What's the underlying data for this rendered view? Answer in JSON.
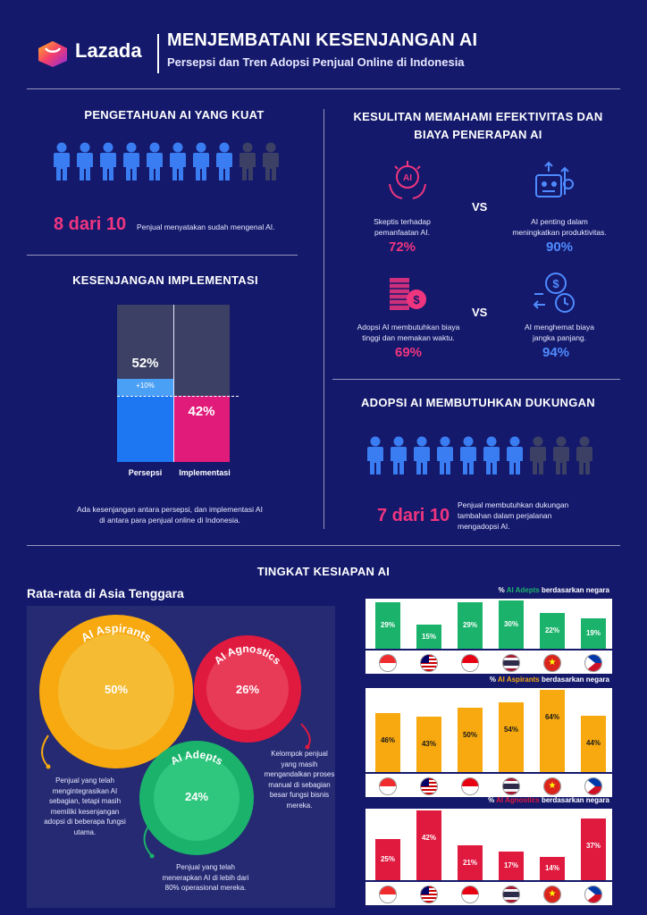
{
  "header": {
    "brand": "Lazada",
    "title": "MENJEMBATANI KESENJANGAN AI",
    "subtitle": "Persepsi dan Tren Adopsi Penjual Online di Indonesia"
  },
  "knowledge": {
    "title": "PENGETAHUAN AI YANG KUAT",
    "stat": "8 dari 10",
    "desc": "Penjual menyatakan sudah mengenal AI.",
    "filled": 8,
    "total": 10
  },
  "gap": {
    "title": "KESENJANGAN IMPLEMENTASI",
    "perception_pct": "52%",
    "implementation_pct": "42%",
    "diff_label": "+10%",
    "label_perception": "Persepsi",
    "label_implementation": "Implementasi",
    "perception_value": 52,
    "implementation_value": 42,
    "desc1": "Ada kesenjangan antara persepsi, dan implementasi AI",
    "desc2": "di antara para penjual online di Indonesia."
  },
  "difficulty": {
    "title1": "KESULITAN MEMAHAMI EFEKTIVITAS DAN",
    "title2": "BIAYA PENERAPAN AI",
    "vs": "VS",
    "items": [
      {
        "text1": "Skeptis terhadap",
        "text2": "pemanfaatan AI.",
        "pct": "72%"
      },
      {
        "text1": "AI penting dalam",
        "text2": "meningkatkan produktivitas.",
        "pct": "90%"
      },
      {
        "text1": "Adopsi AI membutuhkan biaya",
        "text2": "tinggi dan memakan waktu.",
        "pct": "69%"
      },
      {
        "text1": "AI menghemat biaya",
        "text2": "jangka panjang.",
        "pct": "94%"
      }
    ]
  },
  "support": {
    "title": "ADOPSI AI MEMBUTUHKAN DUKUNGAN",
    "stat": "7 dari 10",
    "desc1": "Penjual membutuhkan dukungan",
    "desc2": "tambahan dalam perjalanan",
    "desc3": "mengadopsi AI.",
    "filled": 7,
    "total": 10
  },
  "readiness": {
    "title": "TINGKAT KESIAPAN AI",
    "subtitle": "Rata-rata di Asia Tenggara",
    "aspirants": {
      "name": "AI Aspirants",
      "pct": "50%",
      "desc": [
        "Penjual yang telah",
        "mengintegrasikan AI",
        "sebagian, tetapi masih",
        "memiliki kesenjangan",
        "adopsi di beberapa fungsi",
        "utama."
      ]
    },
    "agnostics": {
      "name": "AI Agnostics",
      "pct": "26%",
      "desc": [
        "Kelompok penjual",
        "yang masih",
        "mengandalkan proses",
        "manual di sebagian",
        "besar fungsi bisnis",
        "mereka."
      ]
    },
    "adepts": {
      "name": "AI Adepts",
      "pct": "24%",
      "desc": [
        "Penjual yang telah",
        "menerapkan AI di lebih dari",
        "80% operasional mereka."
      ]
    }
  },
  "chart_data": [
    {
      "type": "bar",
      "title_prefix": "% ",
      "title_series": "AI Adepts",
      "title_suffix": " berdasarkan negara",
      "countries": [
        "SG",
        "MY",
        "ID",
        "TH",
        "VN",
        "PH"
      ],
      "values": [
        29,
        15,
        29,
        30,
        22,
        19
      ],
      "labels": [
        "29%",
        "15%",
        "29%",
        "30%",
        "22%",
        "19%"
      ],
      "color": "#1bb36b",
      "label_color": "#ffffff",
      "ylim": [
        0,
        30
      ]
    },
    {
      "type": "bar",
      "title_prefix": "% ",
      "title_series": "AI Aspirants",
      "title_suffix": " berdasarkan negara",
      "countries": [
        "SG",
        "MY",
        "ID",
        "TH",
        "VN",
        "PH"
      ],
      "values": [
        46,
        43,
        50,
        54,
        64,
        44
      ],
      "labels": [
        "46%",
        "43%",
        "50%",
        "54%",
        "64%",
        "44%"
      ],
      "color": "#f7a90f",
      "label_color": "#1a1a1a",
      "ylim": [
        0,
        64
      ]
    },
    {
      "type": "bar",
      "title_prefix": "% ",
      "title_series": "AI Agnostics",
      "title_suffix": " berdasarkan negara",
      "countries": [
        "SG",
        "MY",
        "ID",
        "TH",
        "VN",
        "PH"
      ],
      "values": [
        25,
        42,
        21,
        17,
        14,
        37
      ],
      "labels": [
        "25%",
        "42%",
        "21%",
        "17%",
        "14%",
        "37%"
      ],
      "color": "#e0193f",
      "label_color": "#ffffff",
      "ylim": [
        0,
        42
      ]
    }
  ],
  "colors": {
    "bg": "#14196b",
    "pink": "#f0357f",
    "blue": "#4f8bff",
    "person_on": "#3a7df2",
    "person_off": "#3b4064",
    "adepts": "#1bb36b",
    "aspirants": "#f7a90f",
    "agnostics": "#e0193f"
  }
}
